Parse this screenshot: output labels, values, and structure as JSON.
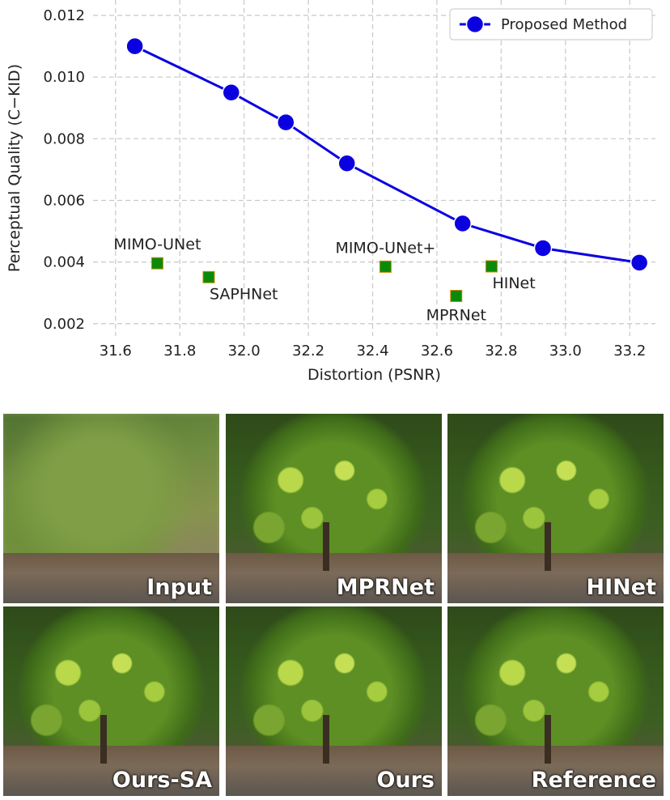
{
  "chart_data": {
    "type": "line",
    "xlabel": "Distortion (PSNR)",
    "ylabel": "Perceptual Quality (C−KID)",
    "xlim": [
      31.53,
      33.28
    ],
    "ylim": [
      0.0016,
      0.0125
    ],
    "xticks": [
      "31.6",
      "31.8",
      "32.0",
      "32.2",
      "32.4",
      "32.6",
      "32.8",
      "33.0",
      "33.2"
    ],
    "yticks": [
      "0.002",
      "0.004",
      "0.006",
      "0.008",
      "0.010",
      "0.012"
    ],
    "grid": true,
    "legend_position": "top-right",
    "series": [
      {
        "name": "Proposed Method",
        "color": "#0b00e0",
        "marker": "circle",
        "x": [
          31.66,
          31.96,
          32.13,
          32.32,
          32.68,
          32.93,
          33.23
        ],
        "y": [
          0.011,
          0.0095,
          0.00853,
          0.0072,
          0.00525,
          0.00445,
          0.00398
        ]
      }
    ],
    "points": [
      {
        "label": "MIMO-UNet",
        "x": 31.73,
        "y": 0.00396,
        "label_pos": "above"
      },
      {
        "label": "SAPHNet",
        "x": 31.89,
        "y": 0.00351,
        "label_pos": "below-right"
      },
      {
        "label": "MIMO-UNet+",
        "x": 32.44,
        "y": 0.00385,
        "label_pos": "above"
      },
      {
        "label": "MPRNet",
        "x": 32.66,
        "y": 0.0029,
        "label_pos": "below"
      },
      {
        "label": "HINet",
        "x": 32.77,
        "y": 0.00386,
        "label_pos": "below-right"
      }
    ],
    "point_color": "#0a8a0a"
  },
  "panels": [
    {
      "caption": "Input",
      "style": "blurred"
    },
    {
      "caption": "MPRNet",
      "style": "sharp"
    },
    {
      "caption": "HINet",
      "style": "sharp"
    },
    {
      "caption": "Ours-SA",
      "style": "sharp"
    },
    {
      "caption": "Ours",
      "style": "sharp"
    },
    {
      "caption": "Reference",
      "style": "sharp"
    }
  ]
}
